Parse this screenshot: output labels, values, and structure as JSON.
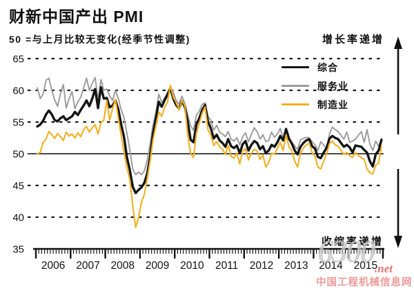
{
  "title": "财新中国产出 PMI",
  "subtitle": "50 =与上月比较无变化(经季节性调整)",
  "annotations": {
    "top_right": "增长率递增",
    "bottom_right": "收缩率递增"
  },
  "watermark": {
    "big": "6300",
    "suffix": ".net",
    "caption": "中国工程机械信息网"
  },
  "chart_data": {
    "type": "line",
    "title": "财新中国产出 PMI",
    "subtitle": "50 =与上月比较无变化(经季节性调整)",
    "x_years": [
      "2006",
      "2007",
      "2008",
      "2009",
      "2010",
      "2011",
      "2012",
      "2013",
      "2014",
      "2015"
    ],
    "x_frequency": "monthly",
    "y_ticks": [
      65,
      60,
      55,
      50,
      45,
      40,
      35
    ],
    "ylim": [
      35,
      65
    ],
    "baseline": 50,
    "grid": "dashed horizontal, solid line at 50",
    "legend_position": "top-right",
    "axis_color": "#111111",
    "series": [
      {
        "name": "综合",
        "color": "#141414",
        "width": 3.4,
        "values": [
          54.3,
          54.6,
          55.2,
          56.2,
          56.8,
          56.2,
          55.3,
          55.1,
          55.6,
          55.9,
          55.3,
          55.6,
          55.9,
          56.6,
          56.1,
          56.9,
          57.6,
          58.4,
          57.5,
          58.7,
          60.2,
          57.2,
          60.5,
          58.7,
          58.8,
          57.3,
          57.6,
          58.4,
          57.0,
          54.6,
          52.6,
          49.4,
          47.4,
          44.8,
          43.8,
          44.3,
          44.7,
          45.4,
          46.9,
          49.6,
          53.2,
          55.6,
          58.2,
          57.4,
          58.4,
          59.3,
          60.3,
          58.7,
          57.7,
          57.1,
          58.3,
          57.4,
          55.0,
          52.2,
          51.8,
          54.6,
          55.6,
          56.9,
          57.7,
          55.1,
          54.0,
          52.4,
          53.0,
          52.1,
          51.7,
          51.1,
          52.3,
          51.2,
          50.9,
          51.3,
          50.1,
          51.5,
          52.0,
          50.5,
          51.4,
          52.0,
          51.7,
          50.7,
          51.2,
          50.1,
          50.5,
          51.4,
          51.1,
          51.8,
          52.8,
          52.1,
          53.9,
          52.4,
          51.6,
          50.5,
          49.9,
          51.1,
          51.7,
          52.1,
          52.3,
          51.2,
          50.8,
          49.5,
          49.3,
          50.2,
          50.9,
          52.4,
          52.8,
          52.5,
          52.3,
          51.7,
          51.1,
          51.4,
          51.0,
          50.2,
          51.3,
          51.2,
          51.1,
          50.6,
          50.2,
          48.8,
          48.0,
          49.9,
          50.5,
          52.2
        ]
      },
      {
        "name": "服务业",
        "color": "#9a9a9a",
        "width": 1.9,
        "values": [
          60.4,
          58.7,
          59.4,
          61.6,
          61.9,
          60.0,
          58.5,
          57.5,
          59.4,
          60.9,
          57.2,
          58.7,
          59.8,
          57.1,
          58.2,
          58.9,
          60.4,
          61.9,
          60.0,
          61.1,
          62.0,
          58.5,
          61.7,
          60.0,
          60.2,
          59.1,
          58.4,
          60.0,
          58.7,
          56.9,
          55.7,
          53.2,
          50.6,
          47.6,
          46.7,
          47.1,
          46.7,
          47.3,
          49.0,
          51.6,
          54.6,
          56.6,
          59.4,
          58.1,
          58.8,
          59.6,
          60.6,
          59.7,
          58.4,
          57.8,
          59.1,
          57.9,
          56.1,
          54.4,
          53.7,
          56.1,
          56.7,
          57.8,
          58.0,
          55.9,
          55.3,
          53.7,
          54.5,
          53.4,
          53.1,
          52.7,
          53.5,
          52.3,
          52.0,
          52.5,
          51.4,
          52.7,
          53.3,
          51.9,
          53.1,
          54.1,
          53.5,
          52.3,
          53.0,
          51.9,
          52.1,
          53.4,
          52.6,
          53.1,
          54.0,
          52.4,
          53.5,
          52.1,
          51.8,
          51.2,
          50.7,
          52.2,
          52.4,
          52.6,
          52.5,
          51.9,
          51.4,
          50.5,
          51.9,
          51.4,
          50.7,
          53.1,
          54.2,
          53.8,
          53.5,
          52.9,
          52.3,
          53.4,
          51.8,
          52.0,
          52.3,
          52.9,
          53.5,
          51.8,
          53.8,
          51.5,
          50.5,
          52.0,
          51.2,
          52.4
        ]
      },
      {
        "name": "制造业",
        "color": "#f2b01e",
        "width": 2.1,
        "values": [
          50.0,
          50.2,
          51.8,
          52.3,
          53.5,
          53.0,
          52.4,
          53.2,
          52.7,
          52.1,
          53.4,
          52.8,
          53.1,
          52.5,
          53.3,
          52.7,
          53.8,
          54.3,
          53.4,
          54.1,
          54.6,
          53.1,
          54.9,
          55.3,
          58.4,
          55.3,
          57.1,
          58.6,
          55.6,
          52.8,
          50.2,
          47.8,
          45.9,
          41.8,
          38.4,
          39.9,
          42.3,
          43.6,
          46.1,
          48.9,
          52.2,
          54.4,
          56.6,
          55.9,
          57.3,
          58.1,
          60.8,
          58.9,
          58.1,
          56.9,
          58.4,
          57.6,
          52.9,
          50.0,
          49.4,
          53.2,
          54.8,
          56.4,
          57.4,
          53.8,
          52.9,
          51.3,
          51.9,
          51.1,
          50.7,
          49.9,
          51.3,
          49.6,
          49.3,
          50.1,
          48.4,
          50.4,
          50.8,
          49.0,
          50.1,
          50.7,
          50.4,
          49.1,
          49.8,
          47.9,
          48.6,
          50.1,
          49.9,
          50.9,
          51.8,
          50.5,
          53.0,
          51.1,
          50.5,
          48.8,
          47.9,
          50.1,
          50.9,
          51.4,
          51.7,
          50.2,
          49.6,
          47.9,
          47.6,
          48.8,
          50.0,
          51.6,
          52.0,
          51.4,
          51.2,
          50.5,
          49.9,
          50.2,
          49.7,
          49.4,
          50.2,
          49.7,
          49.4,
          49.1,
          47.6,
          47.0,
          46.8,
          48.2,
          48.5,
          51.2
        ]
      }
    ]
  }
}
